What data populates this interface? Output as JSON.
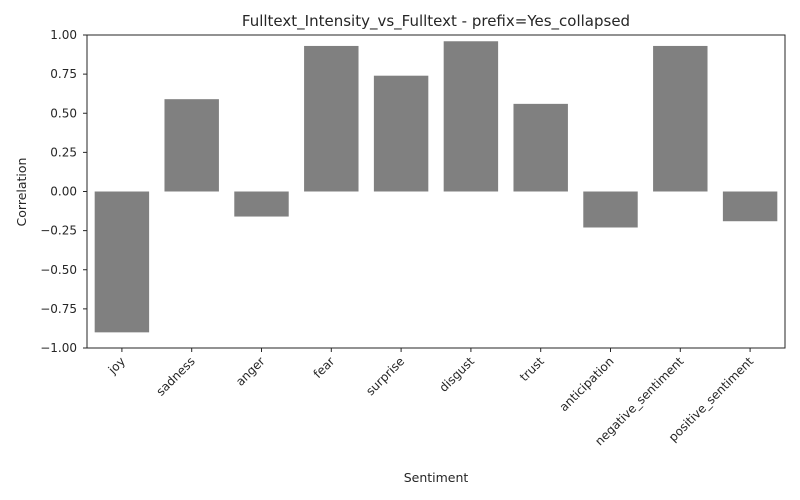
{
  "chart_data": {
    "type": "bar",
    "title": "Fulltext_Intensity_vs_Fulltext - prefix=Yes_collapsed",
    "xlabel": "Sentiment",
    "ylabel": "Correlation",
    "categories": [
      "joy",
      "sadness",
      "anger",
      "fear",
      "surprise",
      "disgust",
      "trust",
      "anticipation",
      "negative_sentiment",
      "positive_sentiment"
    ],
    "values": [
      -0.9,
      0.59,
      -0.16,
      0.93,
      0.74,
      0.96,
      0.56,
      -0.23,
      0.93,
      -0.19
    ],
    "ylim": [
      -1.0,
      1.0
    ],
    "yticks": [
      "−1.00",
      "−0.75",
      "−0.50",
      "−0.25",
      "0.00",
      "0.25",
      "0.50",
      "0.75",
      "1.00"
    ],
    "ytick_values": [
      -1.0,
      -0.75,
      -0.5,
      -0.25,
      0.0,
      0.25,
      0.5,
      0.75,
      1.0
    ],
    "grid": false,
    "bar_color": "#808080"
  }
}
